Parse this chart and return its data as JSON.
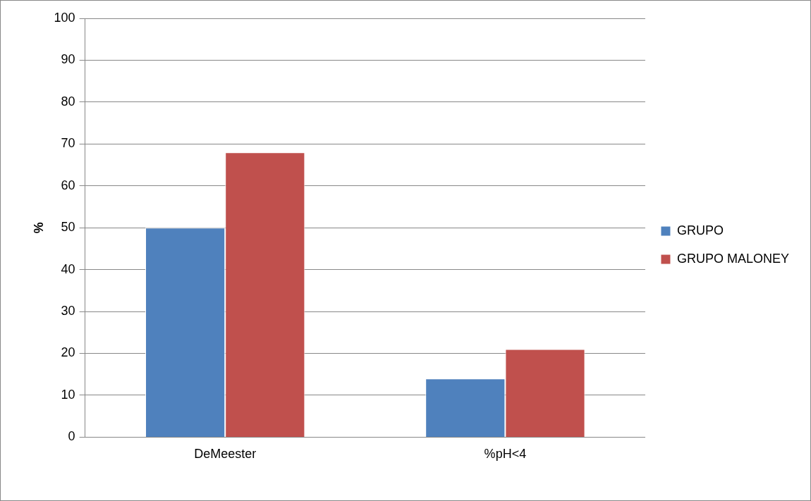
{
  "chart_data": {
    "type": "bar",
    "ylabel": "%",
    "categories": [
      "DeMeester",
      "%pH<4"
    ],
    "series": [
      {
        "name": "GRUPO",
        "color": "#4f81bd",
        "values": [
          50,
          14
        ]
      },
      {
        "name": "GRUPO MALONEY",
        "color": "#c0504d",
        "values": [
          68,
          21
        ]
      }
    ],
    "ylim": [
      0,
      100
    ],
    "yticks": [
      0,
      10,
      20,
      30,
      40,
      50,
      60,
      70,
      80,
      90,
      100
    ],
    "grid": "y",
    "legend": "right"
  }
}
